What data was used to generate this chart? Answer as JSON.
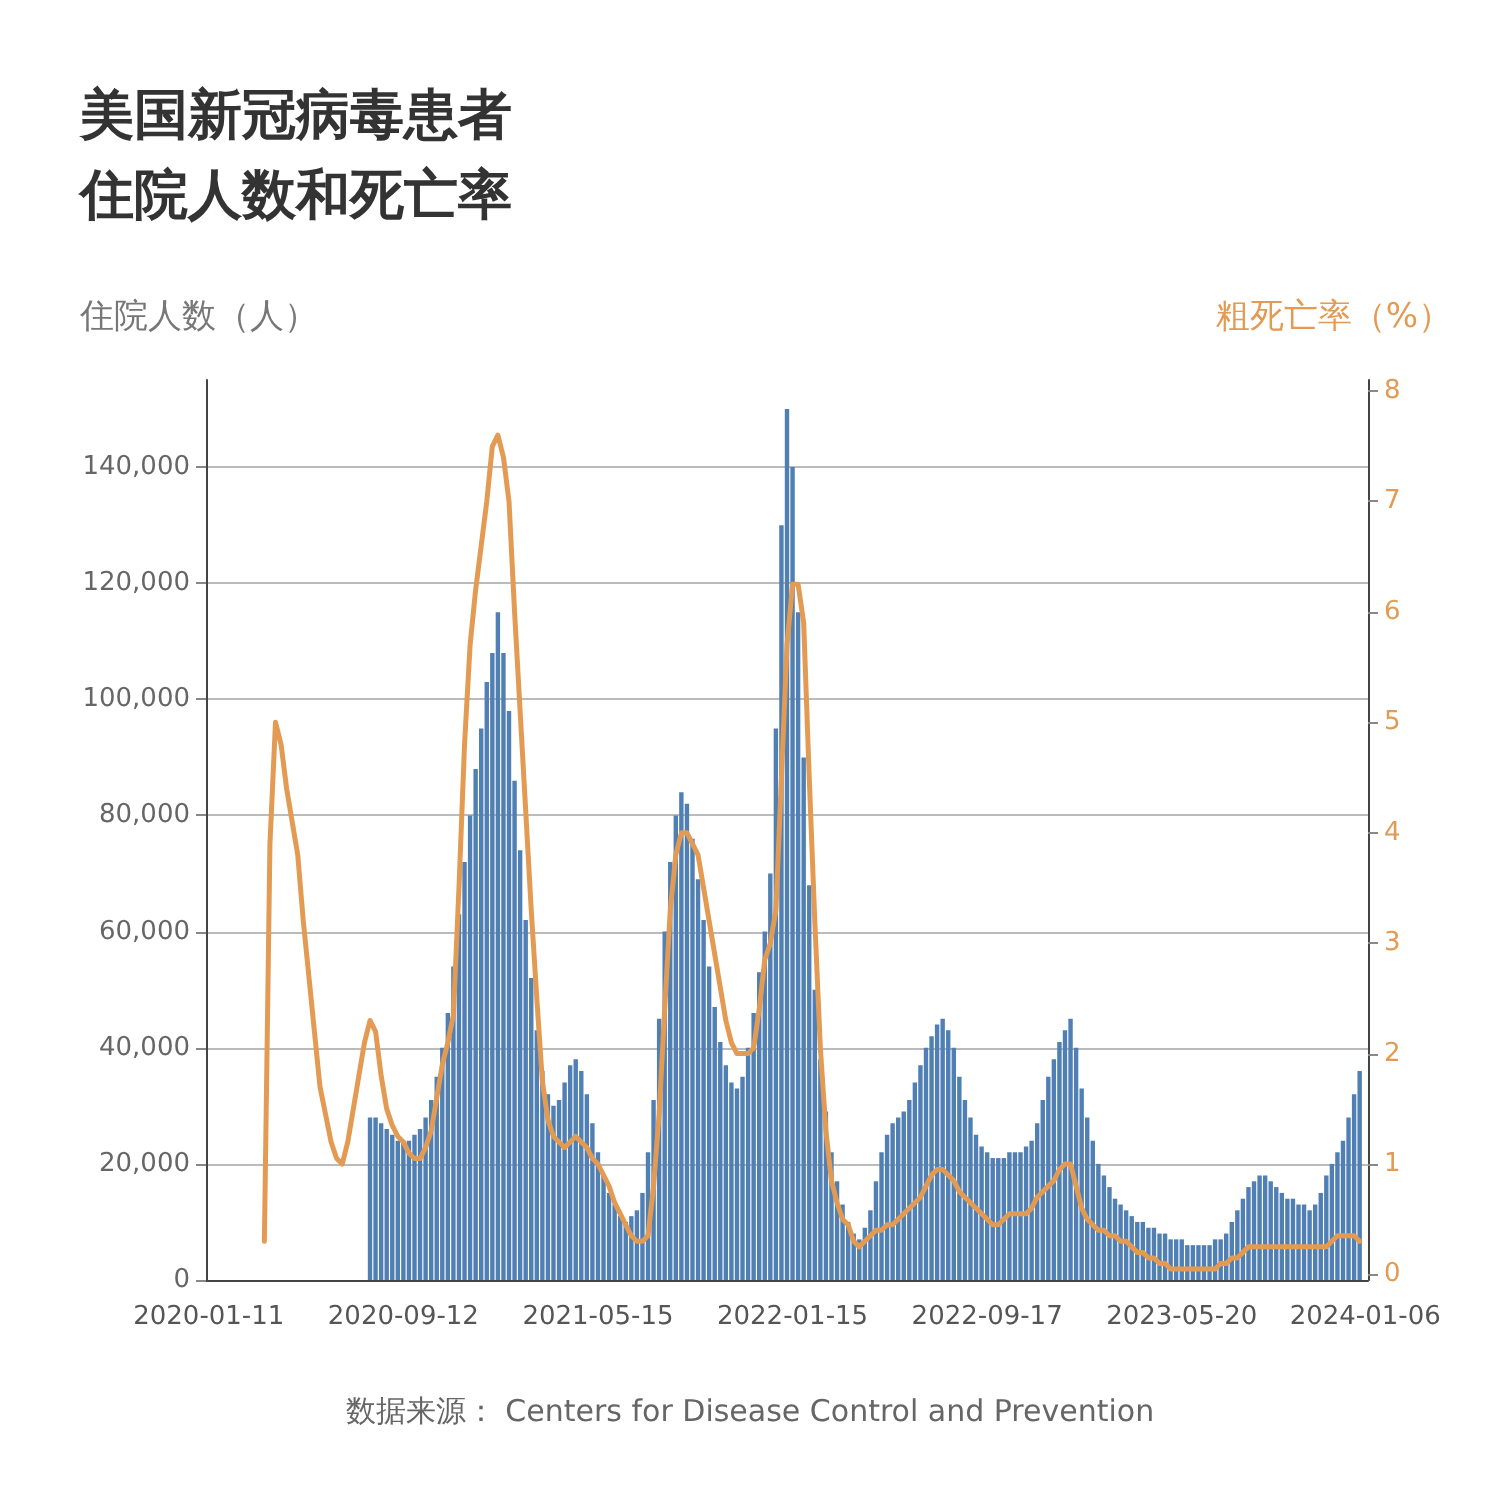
{
  "chart_data": {
    "type": "bar",
    "title": "美国新冠病毒患者住院人数和死亡率",
    "ylabel": "住院人数（人）",
    "y2label": "粗死亡率（%）",
    "categories": [
      "2020-01-11",
      null,
      null,
      null,
      null,
      null,
      null,
      null,
      null,
      null,
      null,
      null,
      null,
      null,
      null,
      null,
      null,
      null,
      null,
      null,
      null,
      null,
      null,
      null,
      null,
      null,
      null,
      null,
      null,
      null,
      null,
      null,
      null,
      null,
      null,
      "2020-09-12",
      null,
      null,
      null,
      null,
      null,
      null,
      null,
      null,
      null,
      null,
      null,
      null,
      null,
      null,
      null,
      null,
      null,
      null,
      null,
      null,
      null,
      null,
      null,
      null,
      null,
      null,
      null,
      null,
      null,
      null,
      null,
      null,
      null,
      null,
      "2021-05-15",
      null,
      null,
      null,
      null,
      null,
      null,
      null,
      null,
      null,
      null,
      null,
      null,
      null,
      null,
      null,
      null,
      null,
      null,
      null,
      null,
      null,
      null,
      null,
      null,
      null,
      null,
      null,
      null,
      null,
      null,
      null,
      null,
      null,
      null,
      "2022-01-15",
      null,
      null,
      null,
      null,
      null,
      null,
      null,
      null,
      null,
      null,
      null,
      null,
      null,
      null,
      null,
      null,
      null,
      null,
      null,
      null,
      null,
      null,
      null,
      null,
      null,
      null,
      null,
      null,
      null,
      null,
      null,
      null,
      null,
      null,
      "2022-09-17",
      null,
      null,
      null,
      null,
      null,
      null,
      null,
      null,
      null,
      null,
      null,
      null,
      null,
      null,
      null,
      null,
      null,
      null,
      null,
      null,
      null,
      null,
      null,
      null,
      null,
      null,
      null,
      null,
      null,
      null,
      null,
      null,
      null,
      null,
      "2023-05-20",
      null,
      null,
      null,
      null,
      null,
      null,
      null,
      null,
      null,
      null,
      null,
      null,
      null,
      null,
      null,
      null,
      null,
      null,
      null,
      null,
      null,
      null,
      null,
      null,
      null,
      null,
      null,
      null,
      null,
      null,
      null,
      null,
      "2024-01-06"
    ],
    "series": [
      {
        "color": "#4f7fb3",
        "values": [
          null,
          null,
          null,
          null,
          null,
          null,
          null,
          null,
          null,
          null,
          null,
          null,
          null,
          null,
          null,
          null,
          null,
          null,
          null,
          null,
          null,
          null,
          null,
          null,
          null,
          null,
          null,
          null,
          null,
          28000,
          28000,
          27000,
          26000,
          25000,
          24000,
          24000,
          24000,
          25000,
          26000,
          28000,
          31000,
          35000,
          40000,
          46000,
          54000,
          63000,
          72000,
          80000,
          88000,
          95000,
          103000,
          108000,
          115000,
          108000,
          98000,
          86000,
          74000,
          62000,
          52000,
          43000,
          36000,
          32000,
          30000,
          31000,
          34000,
          37000,
          38000,
          36000,
          32000,
          27000,
          22000,
          18000,
          15000,
          13000,
          11000,
          10000,
          11000,
          12000,
          15000,
          22000,
          31000,
          45000,
          60000,
          72000,
          80000,
          84000,
          82000,
          76000,
          69000,
          62000,
          54000,
          47000,
          41000,
          37000,
          34000,
          33000,
          35000,
          40000,
          46000,
          53000,
          60000,
          70000,
          95000,
          130000,
          150000,
          140000,
          115000,
          90000,
          68000,
          50000,
          38000,
          29000,
          22000,
          17000,
          13000,
          10000,
          8000,
          7000,
          9000,
          12000,
          17000,
          22000,
          25000,
          27000,
          28000,
          29000,
          31000,
          34000,
          37000,
          40000,
          42000,
          44000,
          45000,
          43000,
          40000,
          35000,
          31000,
          28000,
          25000,
          23000,
          22000,
          21000,
          21000,
          21000,
          22000,
          22000,
          22000,
          23000,
          24000,
          27000,
          31000,
          35000,
          38000,
          41000,
          43000,
          45000,
          40000,
          33000,
          28000,
          24000,
          20000,
          18000,
          16000,
          14000,
          13000,
          12000,
          11000,
          10000,
          10000,
          9000,
          9000,
          8000,
          8000,
          7000,
          7000,
          7000,
          6000,
          6000,
          6000,
          6000,
          6000,
          7000,
          7000,
          8000,
          10000,
          12000,
          14000,
          16000,
          17000,
          18000,
          18000,
          17000,
          16000,
          15000,
          14000,
          14000,
          13000,
          13000,
          12000,
          13000,
          15000,
          18000,
          20000,
          22000,
          24000,
          28000,
          32000,
          36000,
          null
        ]
      },
      {
        "type": "line",
        "axis": "y2",
        "color": "#e39a52",
        "values": [
          null,
          null,
          null,
          null,
          null,
          null,
          null,
          null,
          null,
          null,
          0.3,
          3.9,
          5.0,
          4.8,
          4.4,
          4.1,
          3.8,
          3.2,
          2.7,
          2.2,
          1.7,
          1.45,
          1.2,
          1.05,
          1.0,
          1.2,
          1.5,
          1.8,
          2.1,
          2.3,
          2.2,
          1.8,
          1.5,
          1.35,
          1.25,
          1.2,
          1.1,
          1.05,
          1.05,
          1.15,
          1.3,
          1.6,
          1.9,
          2.1,
          2.35,
          3.5,
          4.8,
          5.7,
          6.2,
          6.6,
          7.0,
          7.5,
          7.6,
          7.4,
          7.0,
          6.0,
          5.1,
          4.2,
          3.3,
          2.5,
          1.75,
          1.4,
          1.25,
          1.2,
          1.15,
          1.2,
          1.25,
          1.2,
          1.15,
          1.05,
          1.0,
          0.9,
          0.8,
          0.65,
          0.55,
          0.45,
          0.35,
          0.3,
          0.3,
          0.35,
          0.8,
          1.45,
          2.4,
          3.3,
          3.8,
          4.0,
          4.0,
          3.9,
          3.8,
          3.5,
          3.2,
          2.9,
          2.6,
          2.3,
          2.1,
          2.0,
          2.0,
          2.0,
          2.05,
          2.4,
          2.85,
          3.0,
          3.3,
          4.5,
          5.7,
          6.25,
          6.25,
          5.9,
          4.5,
          3.2,
          2.05,
          1.3,
          0.85,
          0.65,
          0.5,
          0.45,
          0.3,
          0.25,
          0.3,
          0.35,
          0.4,
          0.4,
          0.45,
          0.45,
          0.5,
          0.55,
          0.6,
          0.65,
          0.7,
          0.8,
          0.9,
          0.95,
          0.95,
          0.9,
          0.85,
          0.75,
          0.7,
          0.65,
          0.6,
          0.55,
          0.5,
          0.45,
          0.45,
          0.5,
          0.55,
          0.55,
          0.55,
          0.55,
          0.6,
          0.7,
          0.75,
          0.8,
          0.85,
          0.95,
          1.0,
          1.0,
          0.8,
          0.6,
          0.5,
          0.45,
          0.4,
          0.4,
          0.35,
          0.35,
          0.3,
          0.3,
          0.25,
          0.2,
          0.2,
          0.15,
          0.15,
          0.1,
          0.1,
          0.05,
          0.05,
          0.05,
          0.05,
          0.05,
          0.05,
          0.05,
          0.05,
          0.05,
          0.1,
          0.1,
          0.15,
          0.15,
          0.2,
          0.25,
          0.25,
          0.25,
          0.25,
          0.25,
          0.25,
          0.25,
          0.25,
          0.25,
          0.25,
          0.25,
          0.25,
          0.25,
          0.25,
          0.25,
          0.3,
          0.35,
          0.35,
          0.35,
          0.35,
          0.3,
          null
        ]
      }
    ],
    "ylim": [
      0,
      155000
    ],
    "yticks": [
      0,
      {
        "value": 20000,
        "label": "20,000"
      },
      {
        "value": 40000,
        "label": "40,000"
      },
      {
        "value": 60000,
        "label": "60,000"
      },
      {
        "value": 80000,
        "label": "80,000"
      },
      {
        "value": 100000,
        "label": "100,000"
      },
      {
        "value": 120000,
        "label": "120,000"
      },
      {
        "value": 140000,
        "label": "140,000"
      }
    ],
    "y2lim": [
      -0.05,
      8.1
    ],
    "y2ticks": [
      0,
      1,
      2,
      3,
      4,
      5,
      6,
      7,
      8
    ],
    "grid": "y",
    "annotations": [
      "数据来源： Centers for Disease Control and Prevention"
    ]
  }
}
